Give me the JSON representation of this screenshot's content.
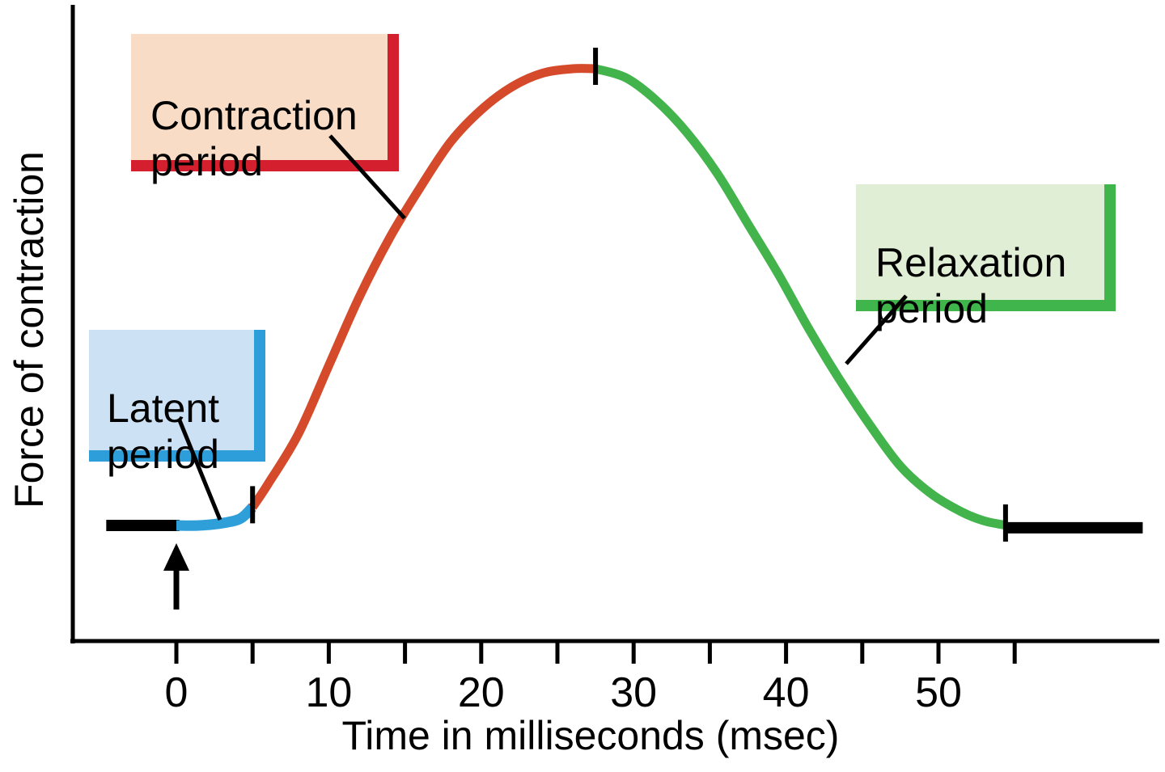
{
  "chart_data": {
    "type": "line",
    "xlabel": "Time in milliseconds (msec)",
    "ylabel": "Force of contraction",
    "xlim": [
      -7,
      64.5
    ],
    "ylim": [
      0,
      1.15
    ],
    "grid": false,
    "y_axis_numeric_labels": false,
    "x_ticks": [
      {
        "value": 0,
        "label": "0"
      },
      {
        "value": 5,
        "label": ""
      },
      {
        "value": 10,
        "label": "10"
      },
      {
        "value": 15,
        "label": ""
      },
      {
        "value": 20,
        "label": "20"
      },
      {
        "value": 25,
        "label": ""
      },
      {
        "value": 30,
        "label": "30"
      },
      {
        "value": 35,
        "label": ""
      },
      {
        "value": 40,
        "label": "40"
      },
      {
        "value": 45,
        "label": ""
      },
      {
        "value": 50,
        "label": "50"
      },
      {
        "value": 55,
        "label": ""
      }
    ],
    "segments": [
      {
        "name": "baseline-pre-stimulus",
        "color": "#000000",
        "width": 14,
        "points": [
          [
            -4.6,
            0
          ],
          [
            0.2,
            0
          ]
        ]
      },
      {
        "name": "latent-period",
        "color": "#2f9fda",
        "width": 13,
        "points": [
          [
            0,
            0
          ],
          [
            1.5,
            0.0
          ],
          [
            3,
            0.005
          ],
          [
            4.2,
            0.015
          ],
          [
            5,
            0.04
          ]
        ]
      },
      {
        "name": "contraction-period",
        "color": "#d44a2a",
        "width": 11,
        "points": [
          [
            5,
            0.04
          ],
          [
            6,
            0.09
          ],
          [
            8,
            0.2
          ],
          [
            10,
            0.35
          ],
          [
            12,
            0.5
          ],
          [
            14,
            0.63
          ],
          [
            16,
            0.74
          ],
          [
            18,
            0.84
          ],
          [
            20,
            0.91
          ],
          [
            22,
            0.96
          ],
          [
            24,
            0.99
          ],
          [
            26,
            1.0
          ],
          [
            27.5,
            1.0
          ]
        ]
      },
      {
        "name": "relaxation-period",
        "color": "#43b34c",
        "width": 11,
        "points": [
          [
            27.5,
            1.0
          ],
          [
            29.5,
            0.98
          ],
          [
            31.5,
            0.93
          ],
          [
            33.5,
            0.86
          ],
          [
            35.5,
            0.77
          ],
          [
            37.5,
            0.66
          ],
          [
            39.5,
            0.55
          ],
          [
            41.5,
            0.43
          ],
          [
            43.5,
            0.32
          ],
          [
            45.5,
            0.22
          ],
          [
            47.5,
            0.13
          ],
          [
            49.5,
            0.07
          ],
          [
            51.5,
            0.03
          ],
          [
            53,
            0.01
          ],
          [
            54.5,
            0.0
          ]
        ]
      },
      {
        "name": "baseline-post-relaxation",
        "color": "#000000",
        "width": 14,
        "points": [
          [
            54.4,
            -0.005
          ],
          [
            63.4,
            -0.005
          ]
        ]
      }
    ],
    "curve_boundary_marks": [
      {
        "t": 5,
        "force": 0.04
      },
      {
        "t": 27.5,
        "force": 1.0
      },
      {
        "t": 54.4,
        "force": 0.0
      }
    ],
    "stimulus": {
      "t": 0,
      "marker": "up-arrow"
    },
    "annotations": {
      "latent": {
        "label": "Latent\nperiod",
        "fill": "#cde1f5",
        "border": "#2e9edb"
      },
      "contraction": {
        "label": "Contraction\nperiod",
        "fill": "#f8dcc6",
        "border": "#d41f2f"
      },
      "relaxation": {
        "label": "Relaxation\nperiod",
        "fill": "#dfeed4",
        "border": "#40b54b"
      }
    }
  }
}
